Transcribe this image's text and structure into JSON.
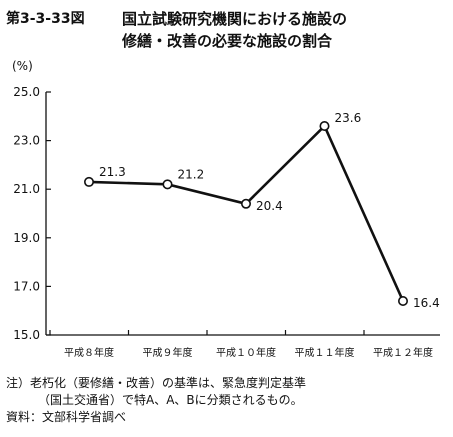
{
  "figure_number": "第3-3-33図",
  "title_line1": "国立試験研究機関における施設の",
  "title_line2": "修繕・改善の必要な施設の割合",
  "chart_data": {
    "type": "line",
    "ylabel": "(%)",
    "ylim": [
      15.0,
      25.0
    ],
    "y_ticks": [
      "15.0",
      "17.0",
      "19.0",
      "21.0",
      "23.0",
      "25.0"
    ],
    "categories": [
      "平成８年度",
      "平成９年度",
      "平成１０年度",
      "平成１１年度",
      "平成１２年度"
    ],
    "values": [
      21.3,
      21.2,
      20.4,
      23.6,
      16.4
    ],
    "data_labels": [
      "21.3",
      "21.2",
      "20.4",
      "23.6",
      "16.4"
    ],
    "grid": false
  },
  "notes": {
    "note_line1": "注）老朽化（要修繕・改善）の基準は、緊急度判定基準",
    "note_line2": "（国土交通省）で特A、A、Bに分類されるもの。",
    "source": "資料：文部科学省調べ"
  }
}
